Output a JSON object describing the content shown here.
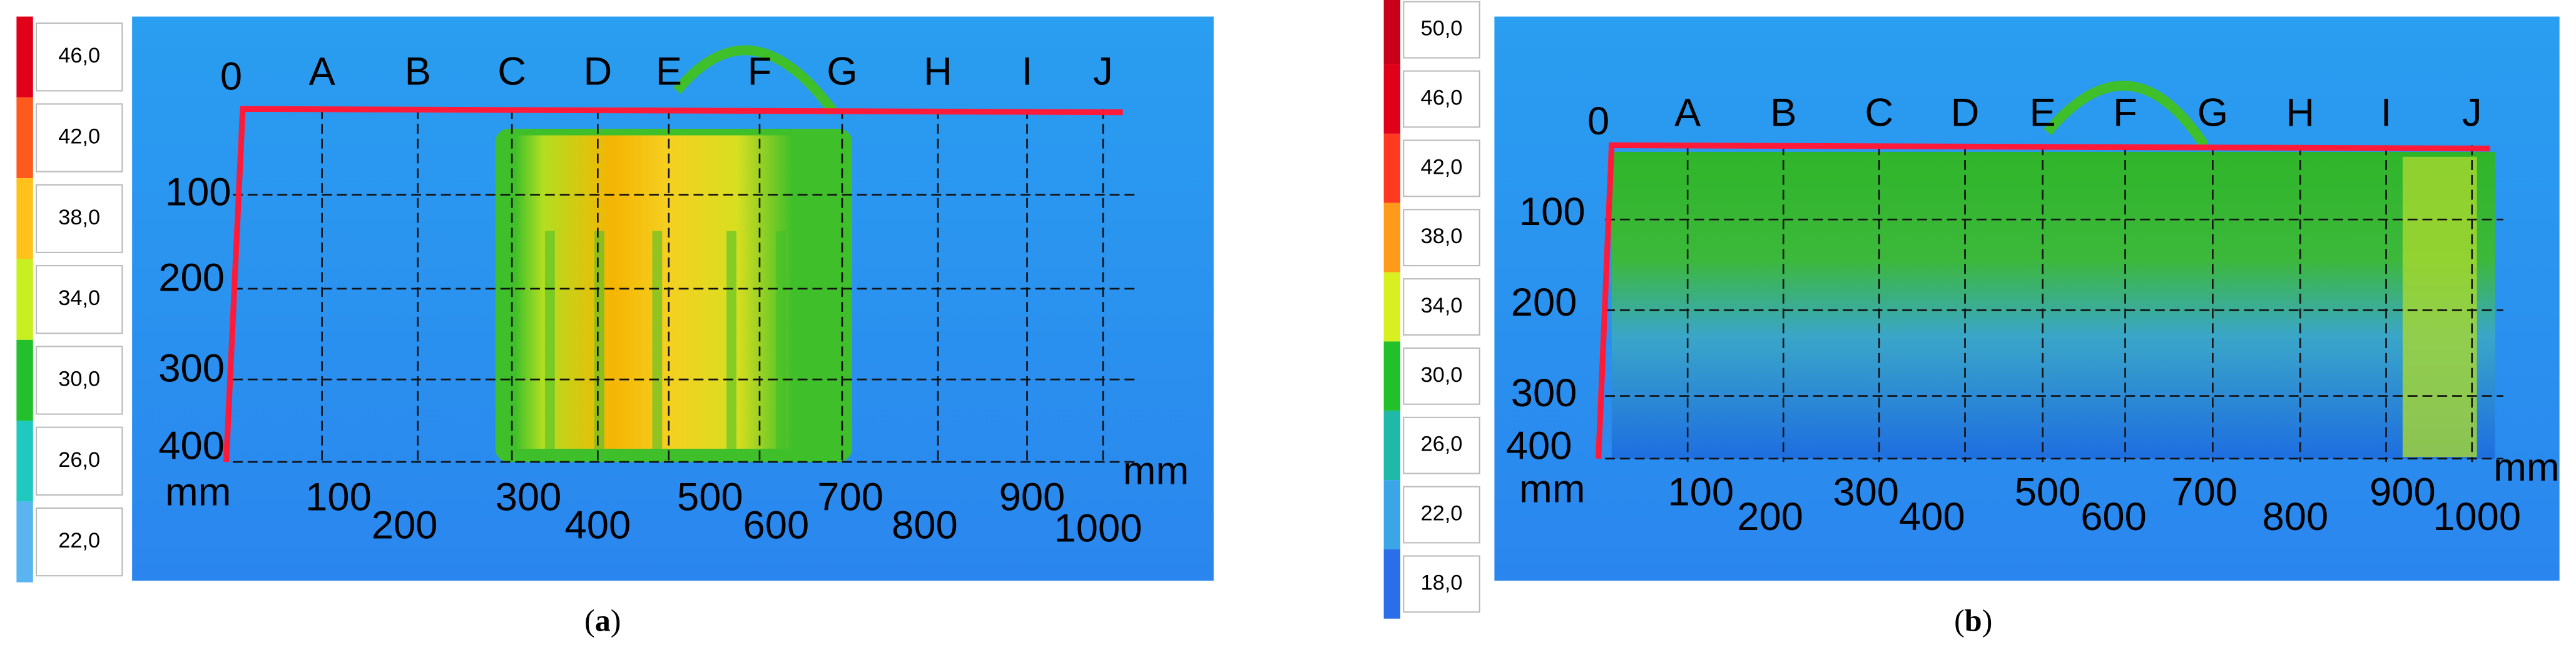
{
  "panels": [
    {
      "colorbar": [
        "46,0",
        "42,0",
        "38,0",
        "34,0",
        "30,0",
        "26,0",
        "22,0"
      ],
      "column_labels": [
        "0",
        "A",
        "B",
        "C",
        "D",
        "E",
        "F",
        "G",
        "H",
        "I",
        "J"
      ],
      "row_labels": [
        "100",
        "200",
        "300",
        "400"
      ],
      "x_labels": [
        "mm",
        "100",
        "200",
        "300",
        "400",
        "500",
        "600",
        "700",
        "800",
        "900",
        "1000",
        "mm"
      ],
      "caption": [
        "(",
        "a",
        ")"
      ]
    },
    {
      "colorbar": [
        "50,0",
        "46,0",
        "42,0",
        "38,0",
        "34,0",
        "30,0",
        "26,0",
        "22,0",
        "18,0"
      ],
      "column_labels": [
        "0",
        "A",
        "B",
        "C",
        "D",
        "E",
        "F",
        "G",
        "H",
        "I",
        "J"
      ],
      "row_labels": [
        "100",
        "200",
        "300",
        "400"
      ],
      "x_labels": [
        "mm",
        "100",
        "200",
        "300",
        "400",
        "500",
        "600",
        "700",
        "800",
        "900",
        "1000",
        "mm"
      ],
      "caption": [
        "(",
        "b",
        ")"
      ]
    }
  ]
}
